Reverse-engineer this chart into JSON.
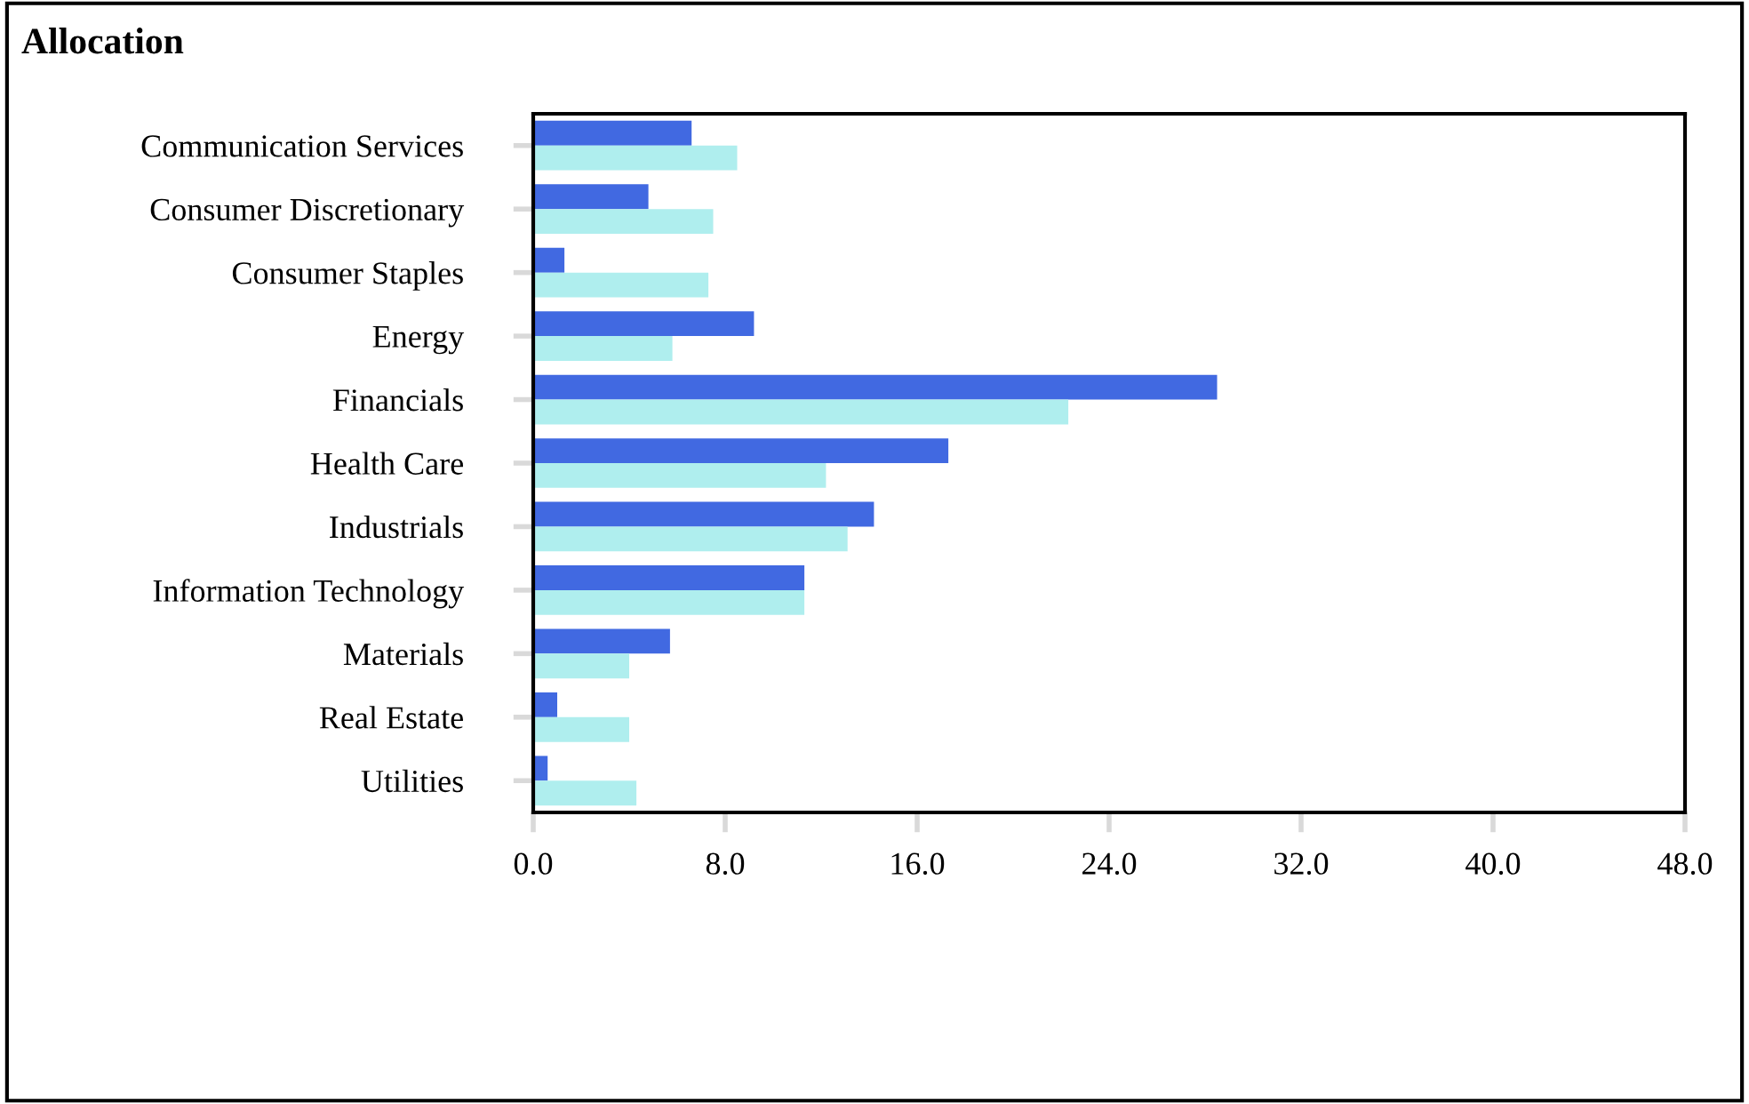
{
  "chart_data": {
    "type": "bar",
    "orientation": "horizontal",
    "title": "Allocation",
    "categories": [
      "Communication Services",
      "Consumer Discretionary",
      "Consumer Staples",
      "Energy",
      "Financials",
      "Health Care",
      "Industrials",
      "Information Technology",
      "Materials",
      "Real Estate",
      "Utilities"
    ],
    "series": [
      {
        "color": "#4169e1",
        "values": [
          6.6,
          4.8,
          1.3,
          9.2,
          28.5,
          17.3,
          14.2,
          11.3,
          5.7,
          1.0,
          0.6
        ]
      },
      {
        "color": "#afeeee",
        "values": [
          8.5,
          7.5,
          7.3,
          5.8,
          22.3,
          12.2,
          13.1,
          11.3,
          4.0,
          4.0,
          4.3
        ]
      }
    ],
    "xlim": [
      0,
      48
    ],
    "xticks": [
      {
        "value": 0,
        "label": "0.0"
      },
      {
        "value": 8,
        "label": "8.0"
      },
      {
        "value": 16,
        "label": "16.0"
      },
      {
        "value": 24,
        "label": "24.0"
      },
      {
        "value": 32,
        "label": "32.0"
      },
      {
        "value": 40,
        "label": "40.0"
      },
      {
        "value": 48,
        "label": "48.0"
      }
    ],
    "grid": false
  }
}
